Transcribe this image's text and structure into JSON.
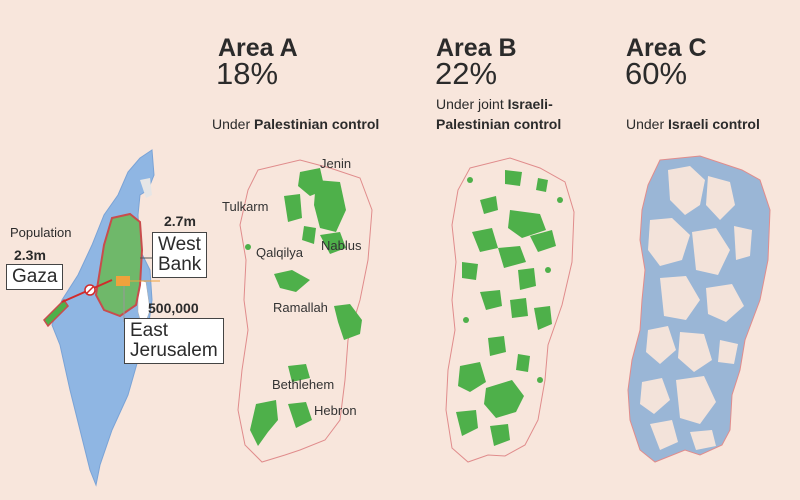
{
  "colors": {
    "background": "#f8e6dc",
    "area_a_green": "#4eb04a",
    "area_c_blue": "#9ab6d6",
    "israel_blue": "#8fb6e3",
    "border_red": "#c94c4c",
    "arrow_red": "#d12b2b",
    "jerusalem_orange": "#f0a23c"
  },
  "areas": [
    {
      "title": "Area A",
      "percent": "18%",
      "desc_prefix": "Under ",
      "desc_bold": "Palestinian control",
      "desc_bold_line2": ""
    },
    {
      "title": "Area B",
      "percent": "22%",
      "desc_prefix": "Under joint ",
      "desc_bold": "Israeli-",
      "desc_bold_line2": "Palestinian control"
    },
    {
      "title": "Area C",
      "percent": "60%",
      "desc_prefix": "Under ",
      "desc_bold": "Israeli control",
      "desc_bold_line2": ""
    }
  ],
  "overview": {
    "population_label": "Population",
    "gaza_pop": "2.3m",
    "gaza_label": "Gaza",
    "westbank_pop": "2.7m",
    "westbank_label_line1": "West",
    "westbank_label_line2": "Bank",
    "ej_pop": "500,000",
    "ej_label_line1": "East",
    "ej_label_line2": "Jerusalem"
  },
  "cities": [
    "Jenin",
    "Tulkarm",
    "Nablus",
    "Qalqilya",
    "Ramallah",
    "Bethlehem",
    "Hebron"
  ]
}
